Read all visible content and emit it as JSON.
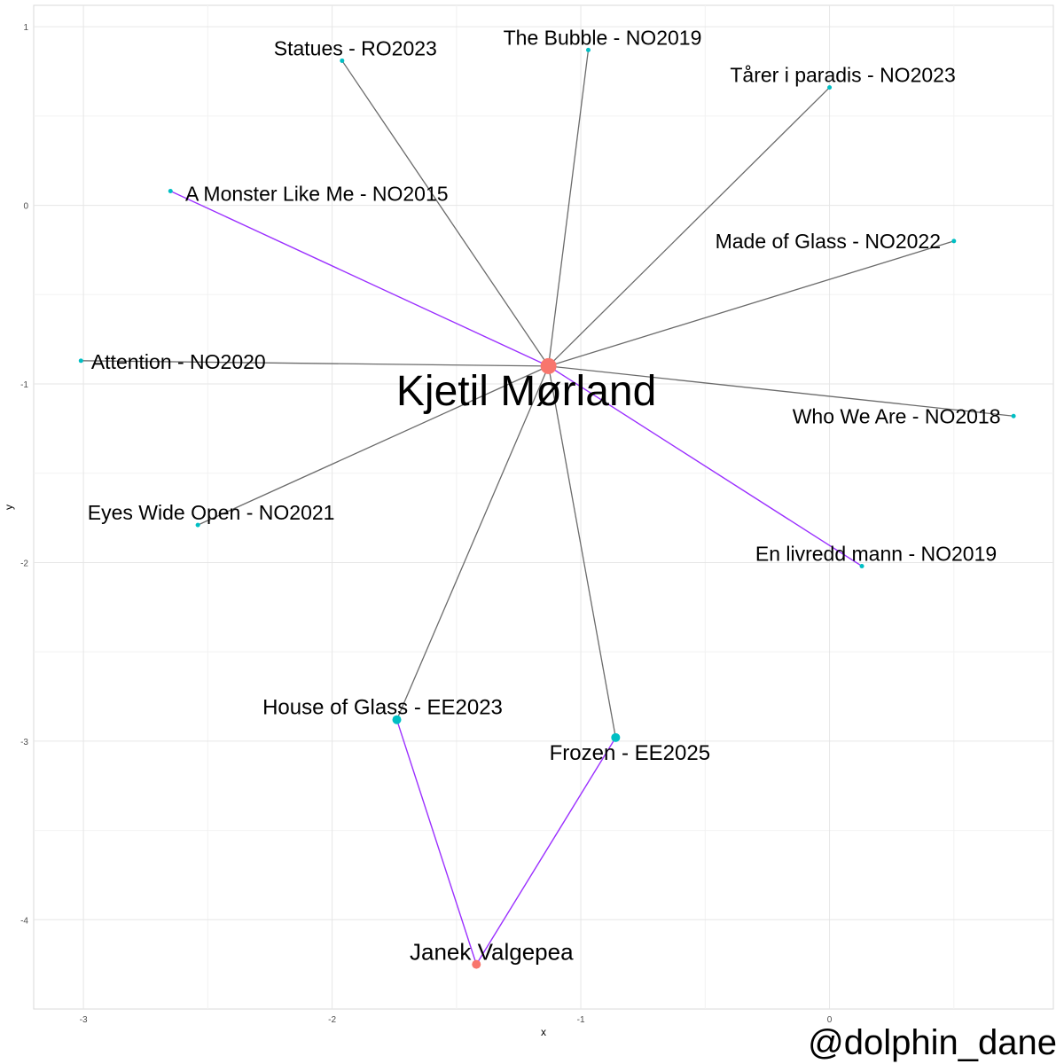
{
  "chart_data": {
    "type": "network",
    "xlabel": "x",
    "ylabel": "y",
    "xlim": [
      -3.2,
      0.9
    ],
    "ylim": [
      -4.5,
      1.12
    ],
    "x_ticks": [
      -3,
      -2,
      -1,
      0
    ],
    "y_ticks": [
      1,
      0,
      -1,
      -2,
      -3,
      -4
    ],
    "x_tick_labels": [
      "-3",
      "-2",
      "-1",
      "0"
    ],
    "y_tick_labels": [
      "1",
      "0",
      "-1",
      "-2",
      "-3",
      "-4"
    ],
    "grid": true,
    "colors": {
      "person": "#f8766d",
      "song": "#00bfc4",
      "edge_default": "#6b6b6b",
      "edge_highlight": "#9b30ff",
      "grid_major": "#e6e6e6",
      "grid_minor": "#f2f2f2",
      "panel_border": "#d9d9d9"
    },
    "nodes": [
      {
        "id": "kjetil",
        "label": "Kjetil Mørland",
        "type": "person",
        "x": -1.13,
        "y": -0.9,
        "size": "large"
      },
      {
        "id": "janek",
        "label": "Janek Valgepea",
        "type": "person",
        "x": -1.42,
        "y": -4.25,
        "size": "medium"
      },
      {
        "id": "statues",
        "label": "Statues - RO2023",
        "type": "song",
        "x": -1.96,
        "y": 0.81,
        "size": "small"
      },
      {
        "id": "bubble",
        "label": "The Bubble - NO2019",
        "type": "song",
        "x": -0.97,
        "y": 0.87,
        "size": "small"
      },
      {
        "id": "tarer",
        "label": "Tårer i paradis - NO2023",
        "type": "song",
        "x": 0.0,
        "y": 0.66,
        "size": "small"
      },
      {
        "id": "monster",
        "label": "A Monster Like Me - NO2015",
        "type": "song",
        "x": -2.65,
        "y": 0.08,
        "size": "small"
      },
      {
        "id": "glass22",
        "label": "Made of Glass - NO2022",
        "type": "song",
        "x": 0.5,
        "y": -0.2,
        "size": "small"
      },
      {
        "id": "attention",
        "label": "Attention - NO2020",
        "type": "song",
        "x": -3.01,
        "y": -0.87,
        "size": "small"
      },
      {
        "id": "whoweare",
        "label": "Who We Are - NO2018",
        "type": "song",
        "x": 0.74,
        "y": -1.18,
        "size": "small"
      },
      {
        "id": "eyes",
        "label": "Eyes Wide Open - NO2021",
        "type": "song",
        "x": -2.54,
        "y": -1.79,
        "size": "small"
      },
      {
        "id": "livredd",
        "label": "En livredd mann - NO2019",
        "type": "song",
        "x": 0.13,
        "y": -2.02,
        "size": "small"
      },
      {
        "id": "houseglass",
        "label": "House of Glass - EE2023",
        "type": "song",
        "x": -1.74,
        "y": -2.88,
        "size": "medium"
      },
      {
        "id": "frozen",
        "label": "Frozen - EE2025",
        "type": "song",
        "x": -0.86,
        "y": -2.98,
        "size": "medium"
      }
    ],
    "edges": [
      {
        "from": "kjetil",
        "to": "statues",
        "highlight": false
      },
      {
        "from": "kjetil",
        "to": "bubble",
        "highlight": false
      },
      {
        "from": "kjetil",
        "to": "tarer",
        "highlight": false
      },
      {
        "from": "kjetil",
        "to": "monster",
        "highlight": true
      },
      {
        "from": "kjetil",
        "to": "glass22",
        "highlight": false
      },
      {
        "from": "kjetil",
        "to": "attention",
        "highlight": false
      },
      {
        "from": "kjetil",
        "to": "whoweare",
        "highlight": false
      },
      {
        "from": "kjetil",
        "to": "eyes",
        "highlight": false
      },
      {
        "from": "kjetil",
        "to": "livredd",
        "highlight": true
      },
      {
        "from": "kjetil",
        "to": "houseglass",
        "highlight": false
      },
      {
        "from": "kjetil",
        "to": "frozen",
        "highlight": false
      },
      {
        "from": "janek",
        "to": "houseglass",
        "highlight": true
      },
      {
        "from": "janek",
        "to": "frozen",
        "highlight": true
      }
    ]
  },
  "watermark": "@dolphin_dane"
}
